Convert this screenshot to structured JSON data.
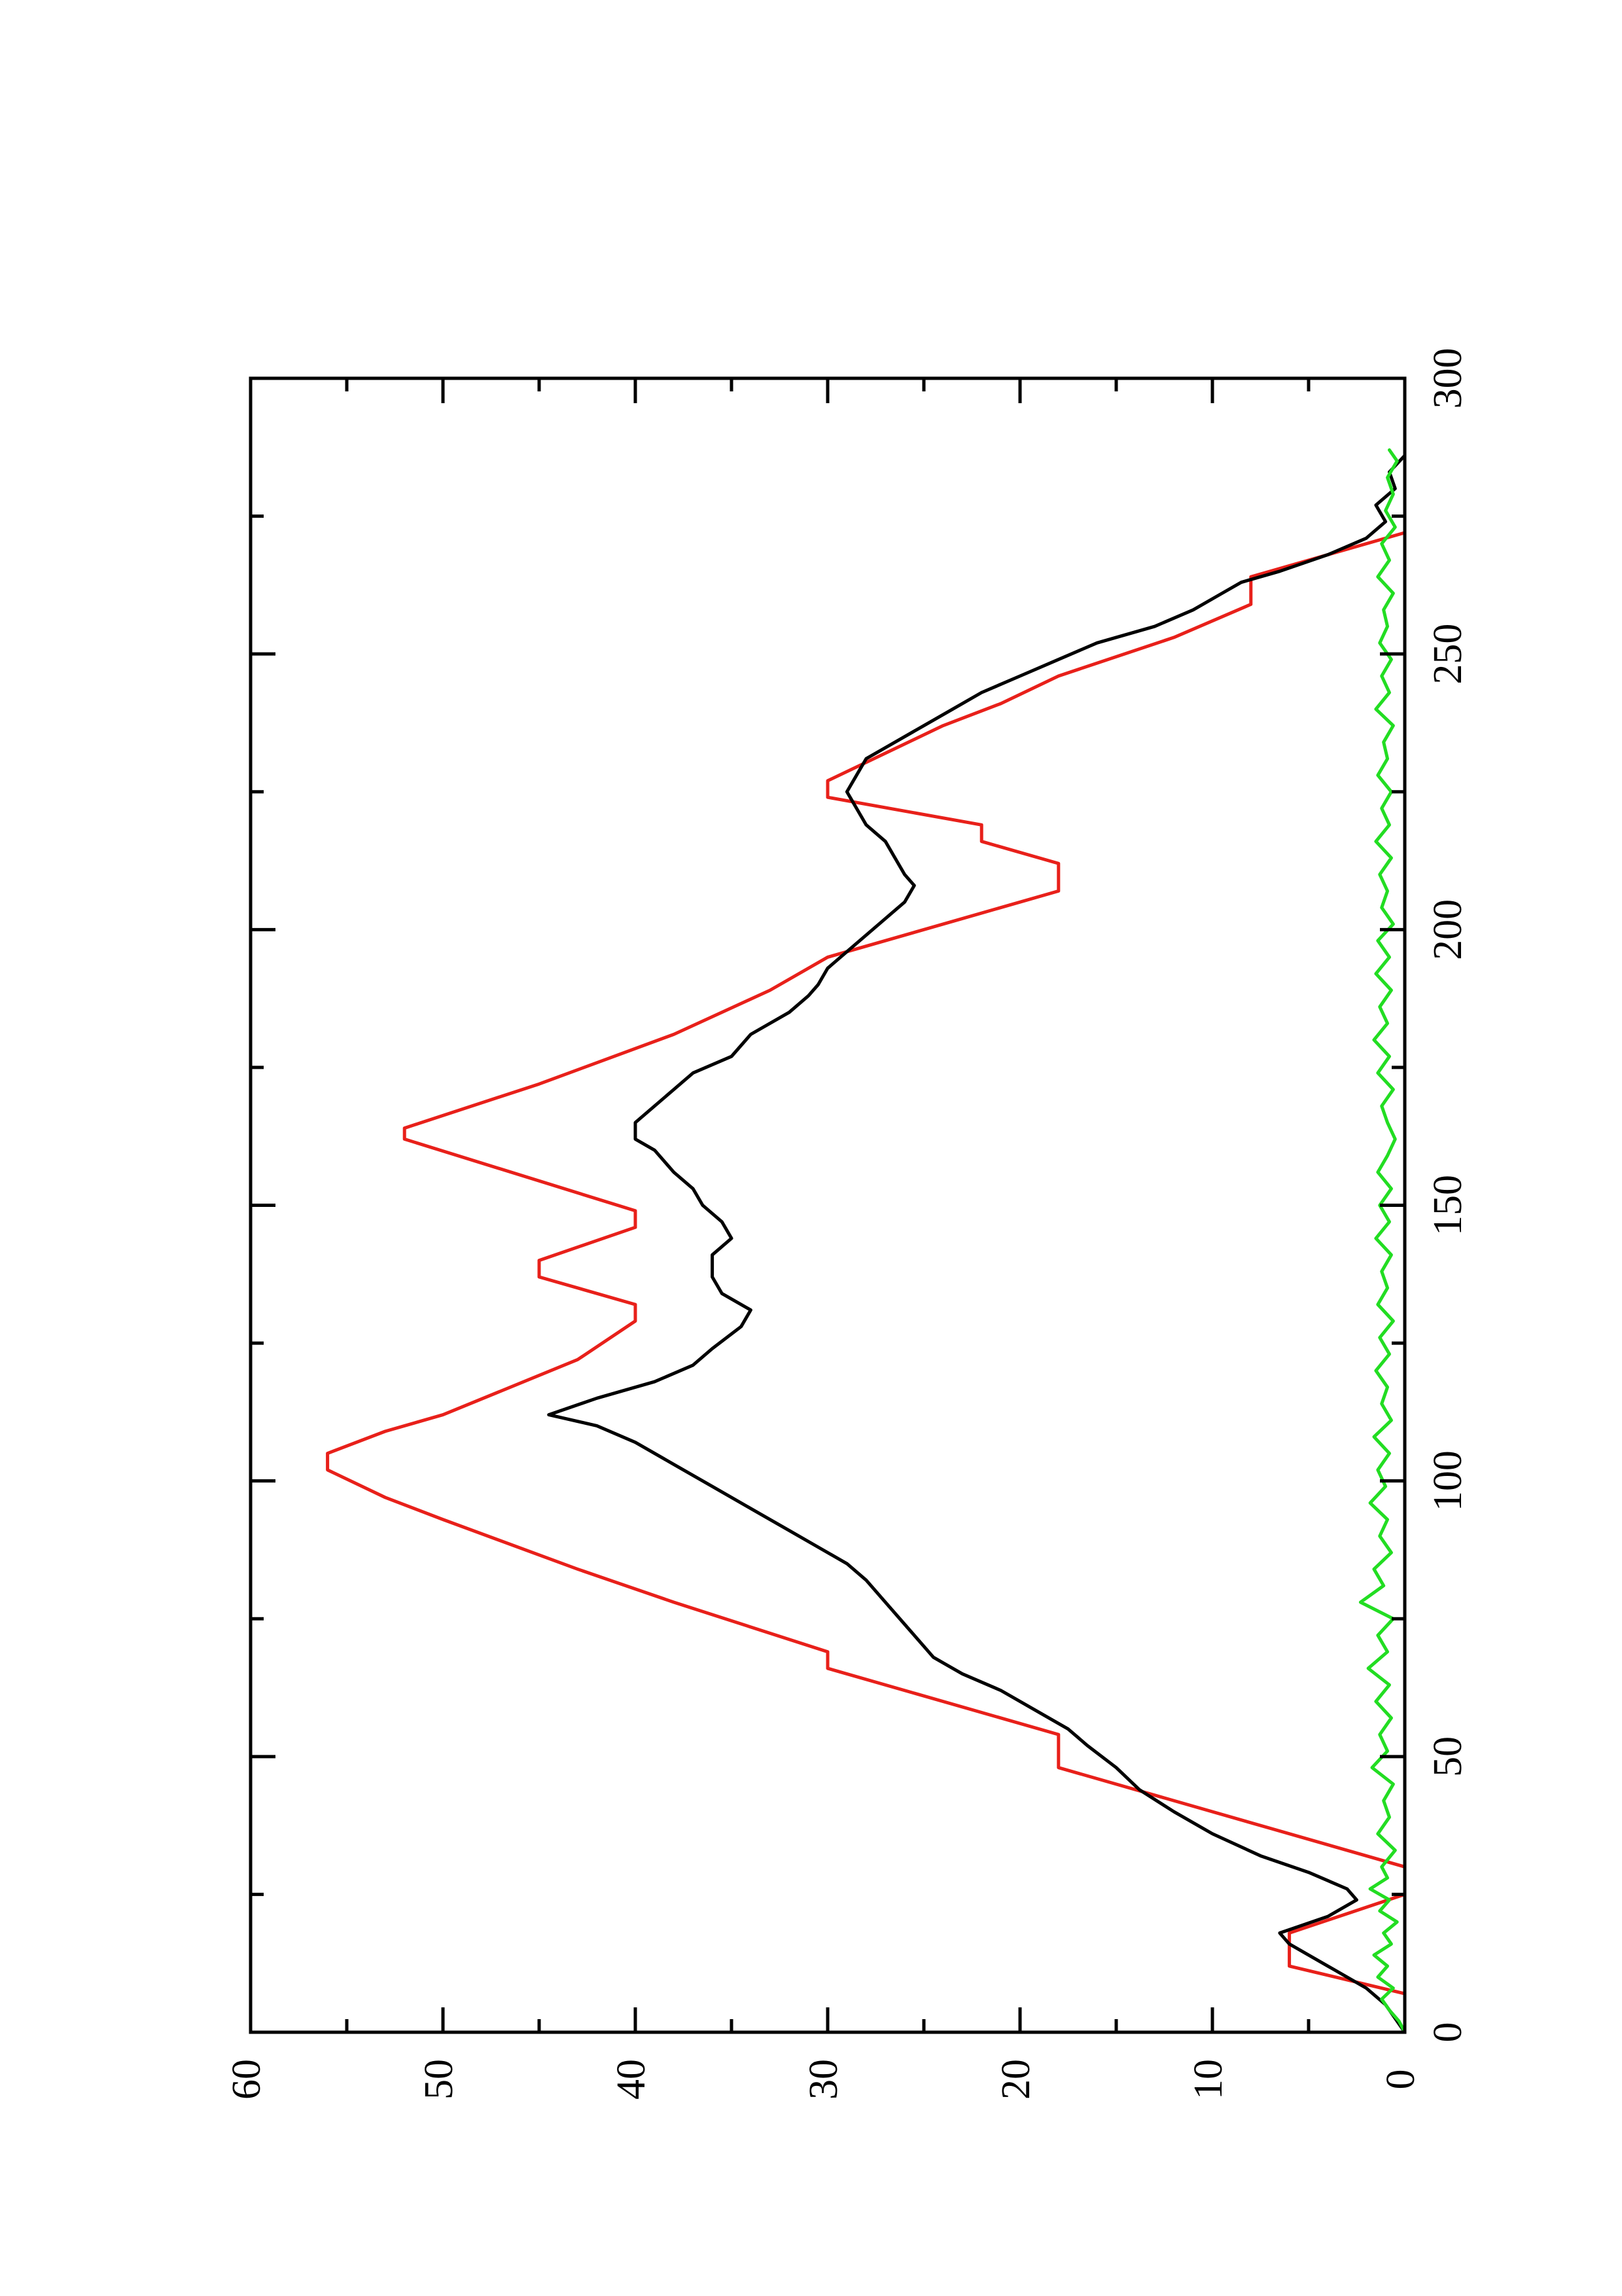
{
  "chart_data": {
    "type": "line",
    "orientation": "rotated-90-counterclockwise",
    "title": "",
    "xlabel": "",
    "ylabel": "",
    "xlim": [
      0,
      300
    ],
    "ylim": [
      0,
      60
    ],
    "x_ticks": [
      "0",
      "50",
      "100",
      "150",
      "200",
      "250",
      "300"
    ],
    "y_ticks": [
      "0",
      "10",
      "20",
      "30",
      "40",
      "50",
      "60"
    ],
    "grid": false,
    "legend": "none",
    "series": [
      {
        "color": "#e8201a",
        "style": "step-line",
        "points": [
          [
            0,
            0
          ],
          [
            7,
            0
          ],
          [
            12,
            6
          ],
          [
            18,
            6
          ],
          [
            25,
            0
          ],
          [
            30,
            0
          ],
          [
            48,
            18
          ],
          [
            54,
            18
          ],
          [
            66,
            30
          ],
          [
            69,
            30
          ],
          [
            78,
            38
          ],
          [
            84,
            43
          ],
          [
            93,
            50
          ],
          [
            97,
            53
          ],
          [
            102,
            56
          ],
          [
            105,
            56
          ],
          [
            109,
            53
          ],
          [
            112,
            50
          ],
          [
            122,
            43
          ],
          [
            129,
            40
          ],
          [
            132,
            40
          ],
          [
            137,
            45
          ],
          [
            140,
            45
          ],
          [
            146,
            40
          ],
          [
            149,
            40
          ],
          [
            162,
            52
          ],
          [
            164,
            52
          ],
          [
            172,
            45
          ],
          [
            181,
            38
          ],
          [
            189,
            33
          ],
          [
            195,
            30
          ],
          [
            207,
            18
          ],
          [
            212,
            18
          ],
          [
            216,
            22
          ],
          [
            219,
            22
          ],
          [
            224,
            30
          ],
          [
            227,
            30
          ],
          [
            237,
            24
          ],
          [
            241,
            21
          ],
          [
            246,
            18
          ],
          [
            253,
            12
          ],
          [
            259,
            8
          ],
          [
            264,
            8
          ],
          [
            272,
            0
          ]
        ]
      },
      {
        "color": "#000000",
        "style": "line",
        "points": [
          [
            0,
            0
          ],
          [
            5,
            1
          ],
          [
            8,
            2
          ],
          [
            12,
            4
          ],
          [
            16,
            6
          ],
          [
            18,
            6.5
          ],
          [
            21,
            4
          ],
          [
            24,
            2.5
          ],
          [
            26,
            3
          ],
          [
            29,
            5
          ],
          [
            32,
            7.5
          ],
          [
            36,
            10
          ],
          [
            40,
            12
          ],
          [
            44,
            13.8
          ],
          [
            48,
            15
          ],
          [
            52,
            16.5
          ],
          [
            55,
            17.5
          ],
          [
            58,
            19
          ],
          [
            62,
            21
          ],
          [
            65,
            23
          ],
          [
            68,
            24.5
          ],
          [
            70,
            25
          ],
          [
            74,
            26
          ],
          [
            78,
            27
          ],
          [
            82,
            28
          ],
          [
            85,
            29
          ],
          [
            88,
            30.5
          ],
          [
            91,
            32
          ],
          [
            95,
            34
          ],
          [
            99,
            36
          ],
          [
            103,
            38
          ],
          [
            107,
            40
          ],
          [
            110,
            42
          ],
          [
            112,
            44.5
          ],
          [
            115,
            42
          ],
          [
            118,
            39
          ],
          [
            121,
            37
          ],
          [
            124,
            36
          ],
          [
            128,
            34.5
          ],
          [
            131,
            34
          ],
          [
            134,
            35.5
          ],
          [
            137,
            36
          ],
          [
            141,
            36
          ],
          [
            144,
            35
          ],
          [
            147,
            35.5
          ],
          [
            150,
            36.5
          ],
          [
            153,
            37
          ],
          [
            156,
            38
          ],
          [
            160,
            39
          ],
          [
            162,
            40
          ],
          [
            165,
            40
          ],
          [
            168,
            39
          ],
          [
            171,
            38
          ],
          [
            174,
            37
          ],
          [
            177,
            35
          ],
          [
            181,
            34
          ],
          [
            185,
            32
          ],
          [
            188,
            31
          ],
          [
            190,
            30.5
          ],
          [
            193,
            30
          ],
          [
            196,
            29
          ],
          [
            199,
            28
          ],
          [
            202,
            27
          ],
          [
            205,
            26
          ],
          [
            208,
            25.5
          ],
          [
            210,
            26
          ],
          [
            213,
            26.5
          ],
          [
            216,
            27
          ],
          [
            219,
            28
          ],
          [
            222,
            28.5
          ],
          [
            225,
            29
          ],
          [
            228,
            28.5
          ],
          [
            231,
            28
          ],
          [
            234,
            26.5
          ],
          [
            237,
            25
          ],
          [
            240,
            23.5
          ],
          [
            243,
            22
          ],
          [
            246,
            20
          ],
          [
            249,
            18
          ],
          [
            252,
            16
          ],
          [
            255,
            13
          ],
          [
            258,
            11
          ],
          [
            261,
            9.5
          ],
          [
            263,
            8.5
          ],
          [
            265,
            6.5
          ],
          [
            268,
            4
          ],
          [
            271,
            2
          ],
          [
            274,
            1
          ],
          [
            277,
            1.5
          ],
          [
            280,
            0.5
          ],
          [
            283,
            0.8
          ],
          [
            286,
            0
          ]
        ]
      },
      {
        "color": "#22dd22",
        "style": "noisy-line",
        "points": [
          [
            0,
            0
          ],
          [
            2,
            0.3
          ],
          [
            4,
            0.8
          ],
          [
            6,
            1.2
          ],
          [
            8,
            0.6
          ],
          [
            10,
            1.4
          ],
          [
            12,
            0.9
          ],
          [
            14,
            1.6
          ],
          [
            16,
            0.7
          ],
          [
            18,
            1.1
          ],
          [
            20,
            0.4
          ],
          [
            22,
            1.3
          ],
          [
            24,
            0.8
          ],
          [
            26,
            1.8
          ],
          [
            28,
            0.9
          ],
          [
            30,
            1.2
          ],
          [
            33,
            0.5
          ],
          [
            36,
            1.4
          ],
          [
            39,
            0.8
          ],
          [
            42,
            1.1
          ],
          [
            45,
            0.6
          ],
          [
            48,
            1.7
          ],
          [
            51,
            0.9
          ],
          [
            54,
            1.3
          ],
          [
            57,
            0.7
          ],
          [
            60,
            1.5
          ],
          [
            63,
            0.8
          ],
          [
            66,
            1.9
          ],
          [
            69,
            0.9
          ],
          [
            72,
            1.4
          ],
          [
            75,
            0.6
          ],
          [
            78,
            2.3
          ],
          [
            81,
            1.1
          ],
          [
            84,
            1.6
          ],
          [
            87,
            0.7
          ],
          [
            90,
            1.3
          ],
          [
            93,
            0.9
          ],
          [
            96,
            1.8
          ],
          [
            99,
            1.0
          ],
          [
            102,
            1.4
          ],
          [
            105,
            0.8
          ],
          [
            108,
            1.6
          ],
          [
            111,
            0.7
          ],
          [
            114,
            1.2
          ],
          [
            117,
            0.9
          ],
          [
            120,
            1.5
          ],
          [
            123,
            0.8
          ],
          [
            126,
            1.3
          ],
          [
            129,
            0.6
          ],
          [
            132,
            1.4
          ],
          [
            135,
            0.9
          ],
          [
            138,
            1.2
          ],
          [
            141,
            0.7
          ],
          [
            144,
            1.5
          ],
          [
            147,
            0.8
          ],
          [
            150,
            1.3
          ],
          [
            153,
            0.7
          ],
          [
            156,
            1.4
          ],
          [
            159,
            0.9
          ],
          [
            162,
            0.5
          ],
          [
            165,
            0.9
          ],
          [
            168,
            1.2
          ],
          [
            171,
            0.6
          ],
          [
            174,
            1.4
          ],
          [
            177,
            0.8
          ],
          [
            180,
            1.6
          ],
          [
            183,
            0.9
          ],
          [
            186,
            1.3
          ],
          [
            189,
            0.7
          ],
          [
            192,
            1.5
          ],
          [
            195,
            0.8
          ],
          [
            198,
            1.4
          ],
          [
            201,
            0.6
          ],
          [
            204,
            1.2
          ],
          [
            207,
            0.9
          ],
          [
            210,
            1.3
          ],
          [
            213,
            0.7
          ],
          [
            216,
            1.5
          ],
          [
            219,
            0.8
          ],
          [
            222,
            1.2
          ],
          [
            225,
            0.7
          ],
          [
            228,
            1.4
          ],
          [
            231,
            0.9
          ],
          [
            234,
            1.1
          ],
          [
            237,
            0.6
          ],
          [
            240,
            1.5
          ],
          [
            243,
            0.8
          ],
          [
            246,
            1.2
          ],
          [
            249,
            0.7
          ],
          [
            252,
            1.3
          ],
          [
            255,
            0.9
          ],
          [
            258,
            1.1
          ],
          [
            261,
            0.6
          ],
          [
            264,
            1.4
          ],
          [
            267,
            0.8
          ],
          [
            270,
            1.2
          ],
          [
            273,
            0.5
          ],
          [
            276,
            1.0
          ],
          [
            279,
            0.6
          ],
          [
            282,
            0.9
          ],
          [
            285,
            0.4
          ],
          [
            287,
            0.8
          ]
        ]
      }
    ]
  }
}
